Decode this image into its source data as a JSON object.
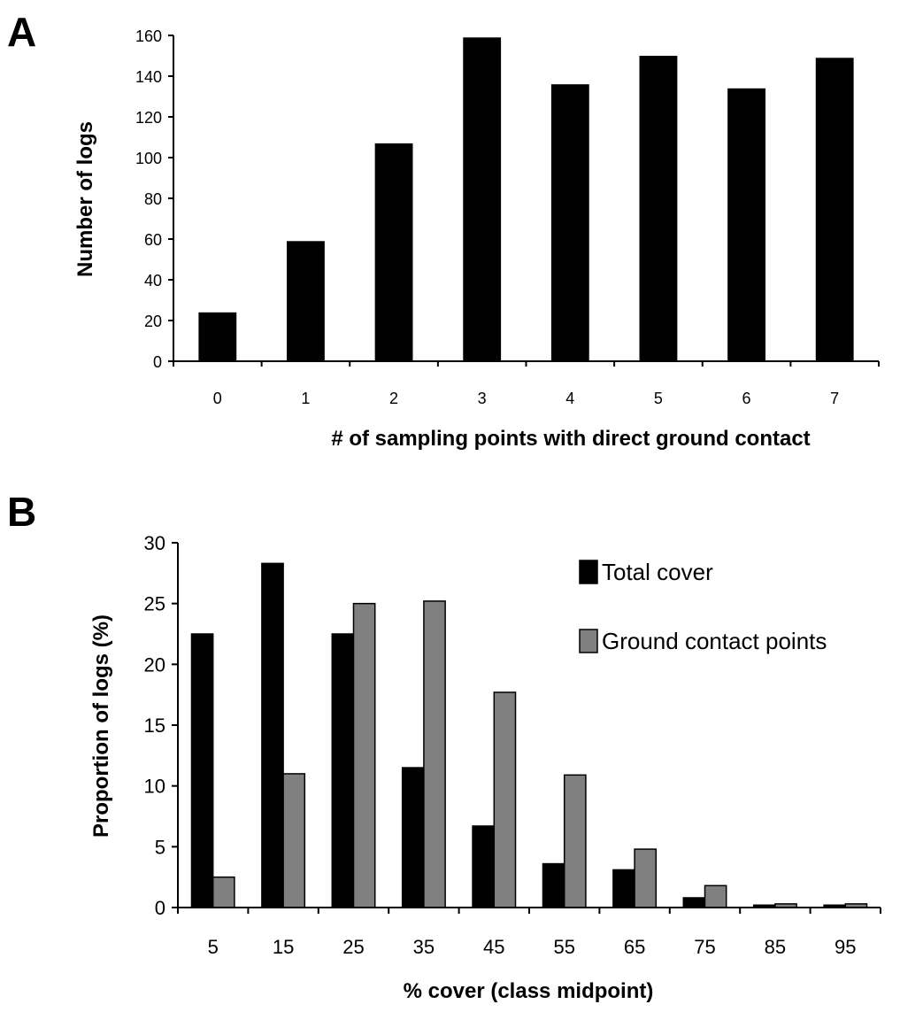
{
  "chart_data": [
    {
      "panel": "A",
      "type": "bar",
      "title": "",
      "xlabel": "# of sampling points with direct ground contact",
      "ylabel": "Number of logs",
      "categories": [
        "0",
        "1",
        "2",
        "3",
        "4",
        "5",
        "6",
        "7"
      ],
      "values": [
        24,
        59,
        107,
        159,
        136,
        150,
        134,
        149
      ],
      "yticks": [
        "0",
        "20",
        "40",
        "60",
        "80",
        "100",
        "120",
        "140",
        "160"
      ],
      "ylim": [
        0,
        160
      ],
      "grid": false,
      "legend": "none",
      "bar_color": "#000000"
    },
    {
      "panel": "B",
      "type": "bar",
      "title": "",
      "xlabel": "% cover (class midpoint)",
      "ylabel": "Proportion of logs (%)",
      "categories": [
        "5",
        "15",
        "25",
        "35",
        "45",
        "55",
        "65",
        "75",
        "85",
        "95"
      ],
      "series": [
        {
          "name": "Total cover",
          "color": "#000000",
          "values": [
            22.5,
            28.3,
            22.5,
            11.5,
            6.7,
            3.6,
            3.1,
            0.8,
            0.2,
            0.2
          ]
        },
        {
          "name": "Ground contact points",
          "color": "#808080",
          "values": [
            2.5,
            11.0,
            25.0,
            25.2,
            17.7,
            10.9,
            4.8,
            1.8,
            0.3,
            0.3
          ]
        }
      ],
      "yticks": [
        "0",
        "5",
        "10",
        "15",
        "20",
        "25",
        "30"
      ],
      "ylim": [
        0,
        30
      ],
      "grid": false,
      "legend": "top-right"
    }
  ]
}
